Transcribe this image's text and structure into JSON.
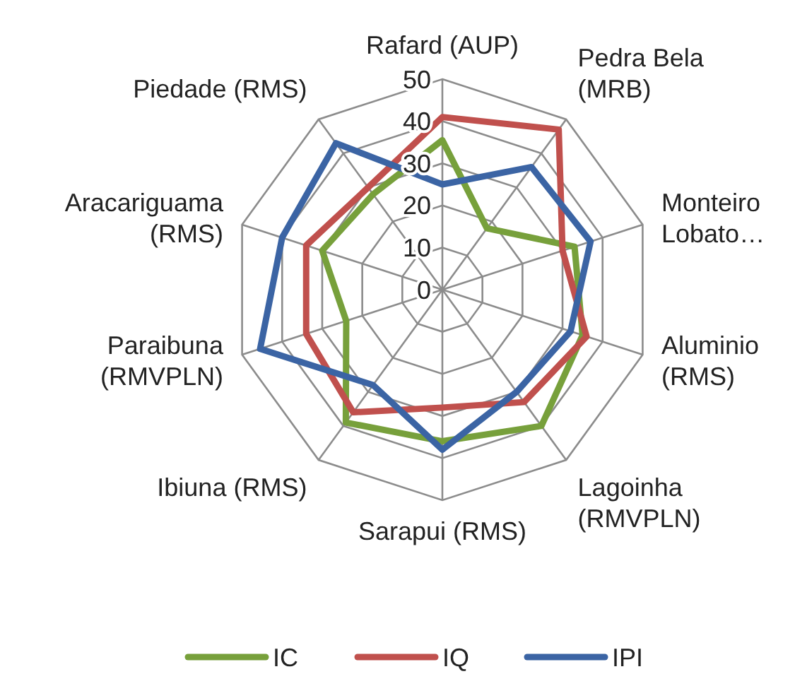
{
  "chart_data": {
    "type": "radar",
    "categories": [
      "Rafard (AUP)",
      "Pedra Bela (MRB)",
      "Monteiro Lobato…",
      "Aluminio (RMS)",
      "Lagoinha (RMVPLN)",
      "Sarapui (RMS)",
      "Ibiuna (RMS)",
      "Paraibuna (RMVPLN)",
      "Aracariguama (RMS)",
      "Piedade (RMS)"
    ],
    "series": [
      {
        "name": "IC",
        "color": "#77a03b",
        "values": [
          35.5,
          18,
          33,
          35,
          40,
          36,
          39,
          24,
          30,
          28
        ]
      },
      {
        "name": "IQ",
        "color": "#c0504d",
        "values": [
          41,
          47,
          30,
          36,
          33,
          28,
          36,
          34,
          34,
          30
        ]
      },
      {
        "name": "IPI",
        "color": "#3b64a4",
        "values": [
          25,
          36,
          37,
          32,
          30,
          38,
          28,
          45.5,
          40,
          43
        ]
      }
    ],
    "ylim": [
      0,
      50
    ],
    "yticks": [
      0,
      10,
      20,
      30,
      40,
      50
    ],
    "grid": true,
    "legend": "bottom"
  }
}
